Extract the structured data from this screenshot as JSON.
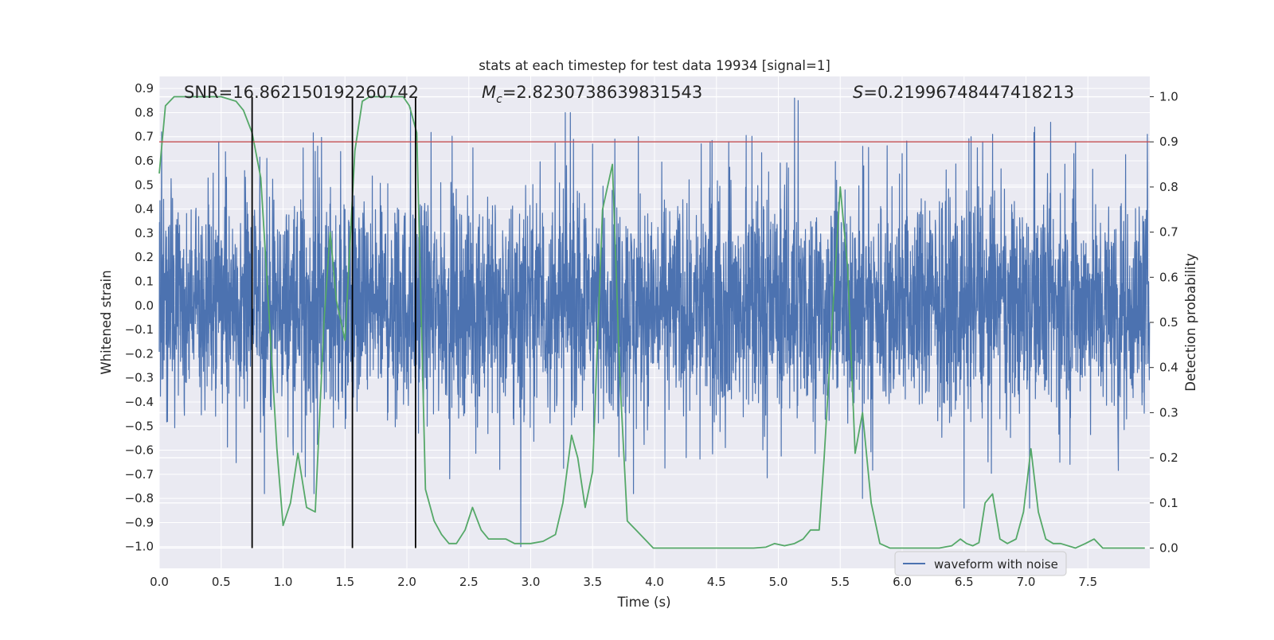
{
  "chart_data": {
    "type": "line",
    "title": "stats at each timestep for test data 19934 [signal=1]",
    "xlabel": "Time (s)",
    "ylabel": "Whitened strain",
    "y2label": "Detection probability",
    "xlim": [
      0.0,
      8.0
    ],
    "ylim": [
      -1.09,
      0.95
    ],
    "y2lim": [
      -0.045,
      1.045
    ],
    "x_ticks": [
      0.0,
      0.5,
      1.0,
      1.5,
      2.0,
      2.5,
      3.0,
      3.5,
      4.0,
      4.5,
      5.0,
      5.5,
      6.0,
      6.5,
      7.0,
      7.5
    ],
    "y_ticks": [
      -1.0,
      -0.9,
      -0.8,
      -0.7,
      -0.6,
      -0.5,
      -0.4,
      -0.3,
      -0.2,
      -0.1,
      0.0,
      0.1,
      0.2,
      0.3,
      0.4,
      0.5,
      0.6,
      0.7,
      0.8,
      0.9
    ],
    "y2_ticks": [
      0.0,
      0.1,
      0.2,
      0.3,
      0.4,
      0.5,
      0.6,
      0.7,
      0.8,
      0.9,
      1.0
    ],
    "annotations": {
      "snr": "SNR=16.862150192260742",
      "mc_symbol": "M",
      "mc_sub": "c",
      "mc_value": "=2.8230738639831543",
      "s_symbol": "S",
      "s_value": "=0.21996748447418213"
    },
    "threshold": 0.9,
    "event_lines_x": [
      0.75,
      1.56,
      2.07
    ],
    "legend": {
      "label": "waveform with noise",
      "placement": "lower-right"
    },
    "grid": true,
    "waveform_samples": 4096,
    "waveform_bursts": [
      [
        0.02,
        0.72
      ],
      [
        0.48,
        0.68
      ],
      [
        0.85,
        -0.78
      ],
      [
        0.87,
        0.61
      ],
      [
        1.18,
        -0.71
      ],
      [
        1.25,
        -0.78
      ],
      [
        1.56,
        0.62
      ],
      [
        2.03,
        0.82
      ],
      [
        2.07,
        -0.7
      ],
      [
        2.75,
        -0.68
      ],
      [
        2.92,
        -1.0
      ],
      [
        3.28,
        0.8
      ],
      [
        3.32,
        0.8
      ],
      [
        3.5,
        0.67
      ],
      [
        3.68,
        0.69
      ],
      [
        3.87,
        0.7
      ],
      [
        3.83,
        -0.78
      ],
      [
        4.45,
        0.68
      ],
      [
        4.6,
        0.68
      ],
      [
        5.13,
        0.86
      ],
      [
        5.16,
        0.85
      ],
      [
        5.68,
        -0.8
      ],
      [
        6.0,
        0.63
      ],
      [
        6.5,
        -0.84
      ],
      [
        6.65,
        0.68
      ],
      [
        6.73,
        0.71
      ],
      [
        7.03,
        -0.84
      ],
      [
        7.07,
        0.74
      ],
      [
        7.2,
        0.76
      ],
      [
        7.4,
        0.68
      ],
      [
        7.98,
        0.71
      ]
    ],
    "series": [
      {
        "name": "waveform with noise",
        "color": "#4c72b0",
        "noise_amplitude": 0.28,
        "peak_amplitude": 0.72
      },
      {
        "color": "#55a868",
        "axis": "right",
        "x": [
          0.0,
          0.05,
          0.12,
          0.2,
          0.3,
          0.4,
          0.5,
          0.62,
          0.68,
          0.75,
          0.82,
          0.88,
          0.95,
          1.0,
          1.06,
          1.12,
          1.19,
          1.26,
          1.33,
          1.38,
          1.43,
          1.5,
          1.58,
          1.64,
          1.7,
          1.8,
          1.9,
          1.97,
          2.02,
          2.08,
          2.15,
          2.22,
          2.28,
          2.34,
          2.4,
          2.47,
          2.53,
          2.6,
          2.66,
          2.73,
          2.8,
          2.87,
          2.93,
          3.0,
          3.1,
          3.2,
          3.26,
          3.33,
          3.38,
          3.44,
          3.5,
          3.58,
          3.66,
          3.72,
          3.78,
          3.85,
          3.92,
          3.99,
          4.05,
          4.2,
          4.4,
          4.6,
          4.8,
          4.9,
          4.97,
          5.05,
          5.13,
          5.2,
          5.26,
          5.33,
          5.37,
          5.43,
          5.5,
          5.56,
          5.62,
          5.68,
          5.75,
          5.82,
          5.9,
          6.1,
          6.3,
          6.4,
          6.47,
          6.52,
          6.57,
          6.62,
          6.67,
          6.73,
          6.79,
          6.85,
          6.92,
          6.98,
          7.04,
          7.1,
          7.16,
          7.22,
          7.28,
          7.4,
          7.48,
          7.55,
          7.62,
          7.7,
          7.8,
          7.96
        ],
        "values": [
          0.83,
          0.98,
          1.0,
          1.0,
          1.0,
          1.0,
          1.0,
          0.99,
          0.97,
          0.92,
          0.82,
          0.55,
          0.22,
          0.05,
          0.1,
          0.21,
          0.09,
          0.08,
          0.5,
          0.7,
          0.55,
          0.46,
          0.88,
          0.99,
          1.0,
          1.0,
          1.0,
          1.0,
          0.98,
          0.92,
          0.13,
          0.06,
          0.03,
          0.01,
          0.01,
          0.04,
          0.09,
          0.04,
          0.02,
          0.02,
          0.02,
          0.01,
          0.01,
          0.01,
          0.015,
          0.03,
          0.1,
          0.25,
          0.2,
          0.09,
          0.17,
          0.75,
          0.85,
          0.38,
          0.06,
          0.04,
          0.02,
          0.0,
          0.0,
          0.0,
          0.0,
          0.0,
          0.0,
          0.002,
          0.01,
          0.005,
          0.01,
          0.02,
          0.04,
          0.04,
          0.2,
          0.48,
          0.8,
          0.62,
          0.21,
          0.3,
          0.1,
          0.01,
          0.0,
          0.0,
          0.0,
          0.005,
          0.02,
          0.01,
          0.005,
          0.012,
          0.1,
          0.12,
          0.02,
          0.01,
          0.02,
          0.08,
          0.22,
          0.08,
          0.02,
          0.01,
          0.01,
          0.0,
          0.01,
          0.02,
          0.0,
          0.0,
          0.0,
          0.0
        ]
      }
    ],
    "colors": {
      "background": "#eaeaf2",
      "grid": "#ffffff",
      "waveform": "#4c72b0",
      "probability": "#55a868",
      "threshold": "#c44e52",
      "event_line": "#000000"
    }
  }
}
